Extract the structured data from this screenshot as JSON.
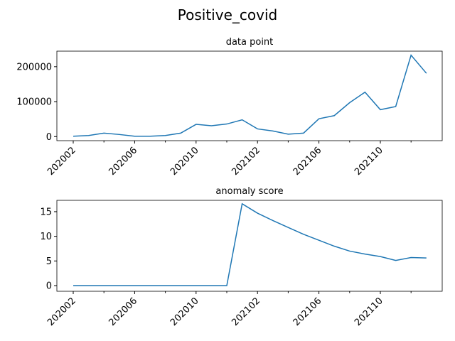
{
  "title": "Positive_covid",
  "chart_data": [
    {
      "type": "line",
      "title": "data point",
      "color": "#1f77b4",
      "categories": [
        "202002",
        null,
        null,
        null,
        "202006",
        null,
        null,
        null,
        "202010",
        null,
        null,
        null,
        "202102",
        null,
        null,
        null,
        "202106",
        null,
        null,
        null,
        "202110",
        null,
        null,
        null
      ],
      "values": [
        1000,
        3000,
        10000,
        6000,
        1000,
        1000,
        3000,
        10000,
        35000,
        31000,
        36000,
        48000,
        22000,
        16000,
        7000,
        10000,
        51000,
        60000,
        97000,
        127000,
        77000,
        86000,
        233000,
        181000
      ],
      "ylim": [
        -11650,
        244400
      ],
      "yticks": [
        0,
        100000,
        200000
      ]
    },
    {
      "type": "line",
      "title": "anomaly score",
      "color": "#1f77b4",
      "categories": [
        "202002",
        null,
        null,
        null,
        "202006",
        null,
        null,
        null,
        "202010",
        null,
        null,
        null,
        "202102",
        null,
        null,
        null,
        "202106",
        null,
        null,
        null,
        "202110",
        null,
        null,
        null
      ],
      "values": [
        0,
        0,
        0,
        0,
        0,
        0,
        0,
        0,
        0,
        0,
        0,
        16.6,
        14.7,
        13.2,
        11.8,
        10.4,
        9.2,
        8.0,
        7.0,
        6.4,
        5.9,
        5.1,
        5.7,
        5.6
      ],
      "ylim": [
        -1.15,
        17.3
      ],
      "yticks": [
        0,
        5,
        10,
        15
      ]
    }
  ]
}
